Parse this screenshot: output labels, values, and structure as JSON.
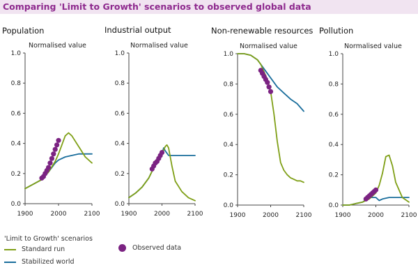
{
  "title": "Comparing 'Limit to Growth' scenarios to observed global data",
  "colors": {
    "title_text": "#8e2a8e",
    "title_bg": "#f1e4f1",
    "standard_run": "#7f9f16",
    "stabilized_world": "#1a6e9c",
    "observed": "#7b2382",
    "axis": "#444444"
  },
  "legend": {
    "heading": "'Limit to Growth' scenarios",
    "standard_run": "Standard run",
    "stabilized_world": "Stabilized world",
    "observed": "Observed data"
  },
  "chart_data": [
    {
      "type": "line",
      "title": "Population",
      "ylabel": "Normalised value",
      "xlim": [
        1900,
        2100
      ],
      "ylim": [
        0,
        1.0
      ],
      "xticks": [
        "1900",
        "2000",
        "2100"
      ],
      "yticks": [
        "0.0",
        "0.2",
        "0.4",
        "0.6",
        "0.8",
        "1.0"
      ],
      "series": [
        {
          "name": "Standard run",
          "x": [
            1900,
            1925,
            1950,
            1970,
            1990,
            2000,
            2010,
            2020,
            2030,
            2040,
            2060,
            2080,
            2100
          ],
          "y": [
            0.1,
            0.13,
            0.16,
            0.21,
            0.28,
            0.33,
            0.39,
            0.45,
            0.47,
            0.45,
            0.38,
            0.31,
            0.27
          ]
        },
        {
          "name": "Stabilized world",
          "x": [
            1900,
            1925,
            1950,
            1970,
            1990,
            2000,
            2020,
            2040,
            2060,
            2080,
            2100
          ],
          "y": [
            0.1,
            0.13,
            0.16,
            0.21,
            0.27,
            0.29,
            0.31,
            0.32,
            0.33,
            0.33,
            0.33
          ]
        },
        {
          "name": "Observed data",
          "x": [
            1950,
            1955,
            1960,
            1965,
            1970,
            1975,
            1980,
            1985,
            1990,
            1995,
            2000
          ],
          "y": [
            0.17,
            0.18,
            0.2,
            0.22,
            0.24,
            0.27,
            0.3,
            0.33,
            0.36,
            0.39,
            0.42
          ]
        }
      ]
    },
    {
      "type": "line",
      "title": "Industrial output",
      "ylabel": "Normalised value",
      "xlim": [
        1900,
        2100
      ],
      "ylim": [
        0,
        1.0
      ],
      "xticks": [
        "1900",
        "2000",
        "2100"
      ],
      "yticks": [
        "0.0",
        "0.2",
        "0.4",
        "0.6",
        "0.8",
        "1.0"
      ],
      "series": [
        {
          "name": "Standard run",
          "x": [
            1900,
            1920,
            1940,
            1960,
            1980,
            2000,
            2010,
            2015,
            2020,
            2030,
            2040,
            2060,
            2080,
            2100
          ],
          "y": [
            0.04,
            0.07,
            0.11,
            0.17,
            0.26,
            0.33,
            0.38,
            0.39,
            0.37,
            0.25,
            0.15,
            0.08,
            0.04,
            0.02
          ]
        },
        {
          "name": "Stabilized world",
          "x": [
            1900,
            1920,
            1940,
            1960,
            1980,
            2000,
            2005,
            2010,
            2020,
            2040,
            2060,
            2080,
            2100
          ],
          "y": [
            0.04,
            0.07,
            0.11,
            0.17,
            0.26,
            0.33,
            0.37,
            0.35,
            0.32,
            0.32,
            0.32,
            0.32,
            0.32
          ]
        },
        {
          "name": "Observed data",
          "x": [
            1970,
            1975,
            1980,
            1985,
            1990,
            1995,
            2000
          ],
          "y": [
            0.23,
            0.25,
            0.27,
            0.28,
            0.3,
            0.32,
            0.34
          ]
        }
      ]
    },
    {
      "type": "line",
      "title": "Non-renewable resources",
      "ylabel": "Normalised value",
      "xlim": [
        1900,
        2100
      ],
      "ylim": [
        0,
        1.0
      ],
      "xticks": [
        "1900",
        "2000",
        "2100"
      ],
      "yticks": [
        "0.0",
        "0.2",
        "0.4",
        "0.6",
        "0.8",
        "1.0"
      ],
      "series": [
        {
          "name": "Standard run",
          "x": [
            1900,
            1920,
            1940,
            1960,
            1970,
            1980,
            1990,
            2000,
            2010,
            2020,
            2030,
            2040,
            2050,
            2060,
            2070,
            2080,
            2090,
            2100
          ],
          "y": [
            1.0,
            1.0,
            0.99,
            0.96,
            0.93,
            0.88,
            0.83,
            0.75,
            0.6,
            0.42,
            0.28,
            0.23,
            0.2,
            0.18,
            0.17,
            0.16,
            0.16,
            0.15
          ]
        },
        {
          "name": "Stabilized world",
          "x": [
            1900,
            1920,
            1940,
            1960,
            1980,
            2000,
            2020,
            2040,
            2060,
            2080,
            2100
          ],
          "y": [
            1.0,
            1.0,
            0.99,
            0.96,
            0.9,
            0.84,
            0.78,
            0.74,
            0.7,
            0.67,
            0.62
          ]
        },
        {
          "name": "Observed data",
          "x": [
            1970,
            1975,
            1980,
            1985,
            1990,
            1995,
            2000
          ],
          "y": [
            0.89,
            0.87,
            0.85,
            0.83,
            0.81,
            0.78,
            0.75
          ]
        }
      ]
    },
    {
      "type": "line",
      "title": "Pollution",
      "ylabel": "Normalised value",
      "xlim": [
        1900,
        2100
      ],
      "ylim": [
        0,
        1.0
      ],
      "xticks": [
        "1900",
        "2000",
        "2100"
      ],
      "yticks": [
        "0.0",
        "0.2",
        "0.4",
        "0.6",
        "0.8",
        "1.0"
      ],
      "series": [
        {
          "name": "Standard run",
          "x": [
            1900,
            1920,
            1940,
            1960,
            1980,
            2000,
            2010,
            2020,
            2030,
            2040,
            2050,
            2060,
            2080,
            2100
          ],
          "y": [
            0.0,
            0.0,
            0.01,
            0.02,
            0.04,
            0.08,
            0.13,
            0.21,
            0.32,
            0.33,
            0.26,
            0.15,
            0.05,
            0.02
          ]
        },
        {
          "name": "Stabilized world",
          "x": [
            1900,
            1920,
            1940,
            1960,
            1980,
            2000,
            2010,
            2020,
            2040,
            2060,
            2080,
            2100
          ],
          "y": [
            0.0,
            0.0,
            0.01,
            0.02,
            0.05,
            0.05,
            0.03,
            0.04,
            0.05,
            0.05,
            0.05,
            0.05
          ]
        },
        {
          "name": "Observed data",
          "x": [
            1970,
            1975,
            1980,
            1985,
            1990,
            1995,
            2000
          ],
          "y": [
            0.04,
            0.05,
            0.06,
            0.07,
            0.08,
            0.09,
            0.1
          ]
        }
      ]
    }
  ]
}
